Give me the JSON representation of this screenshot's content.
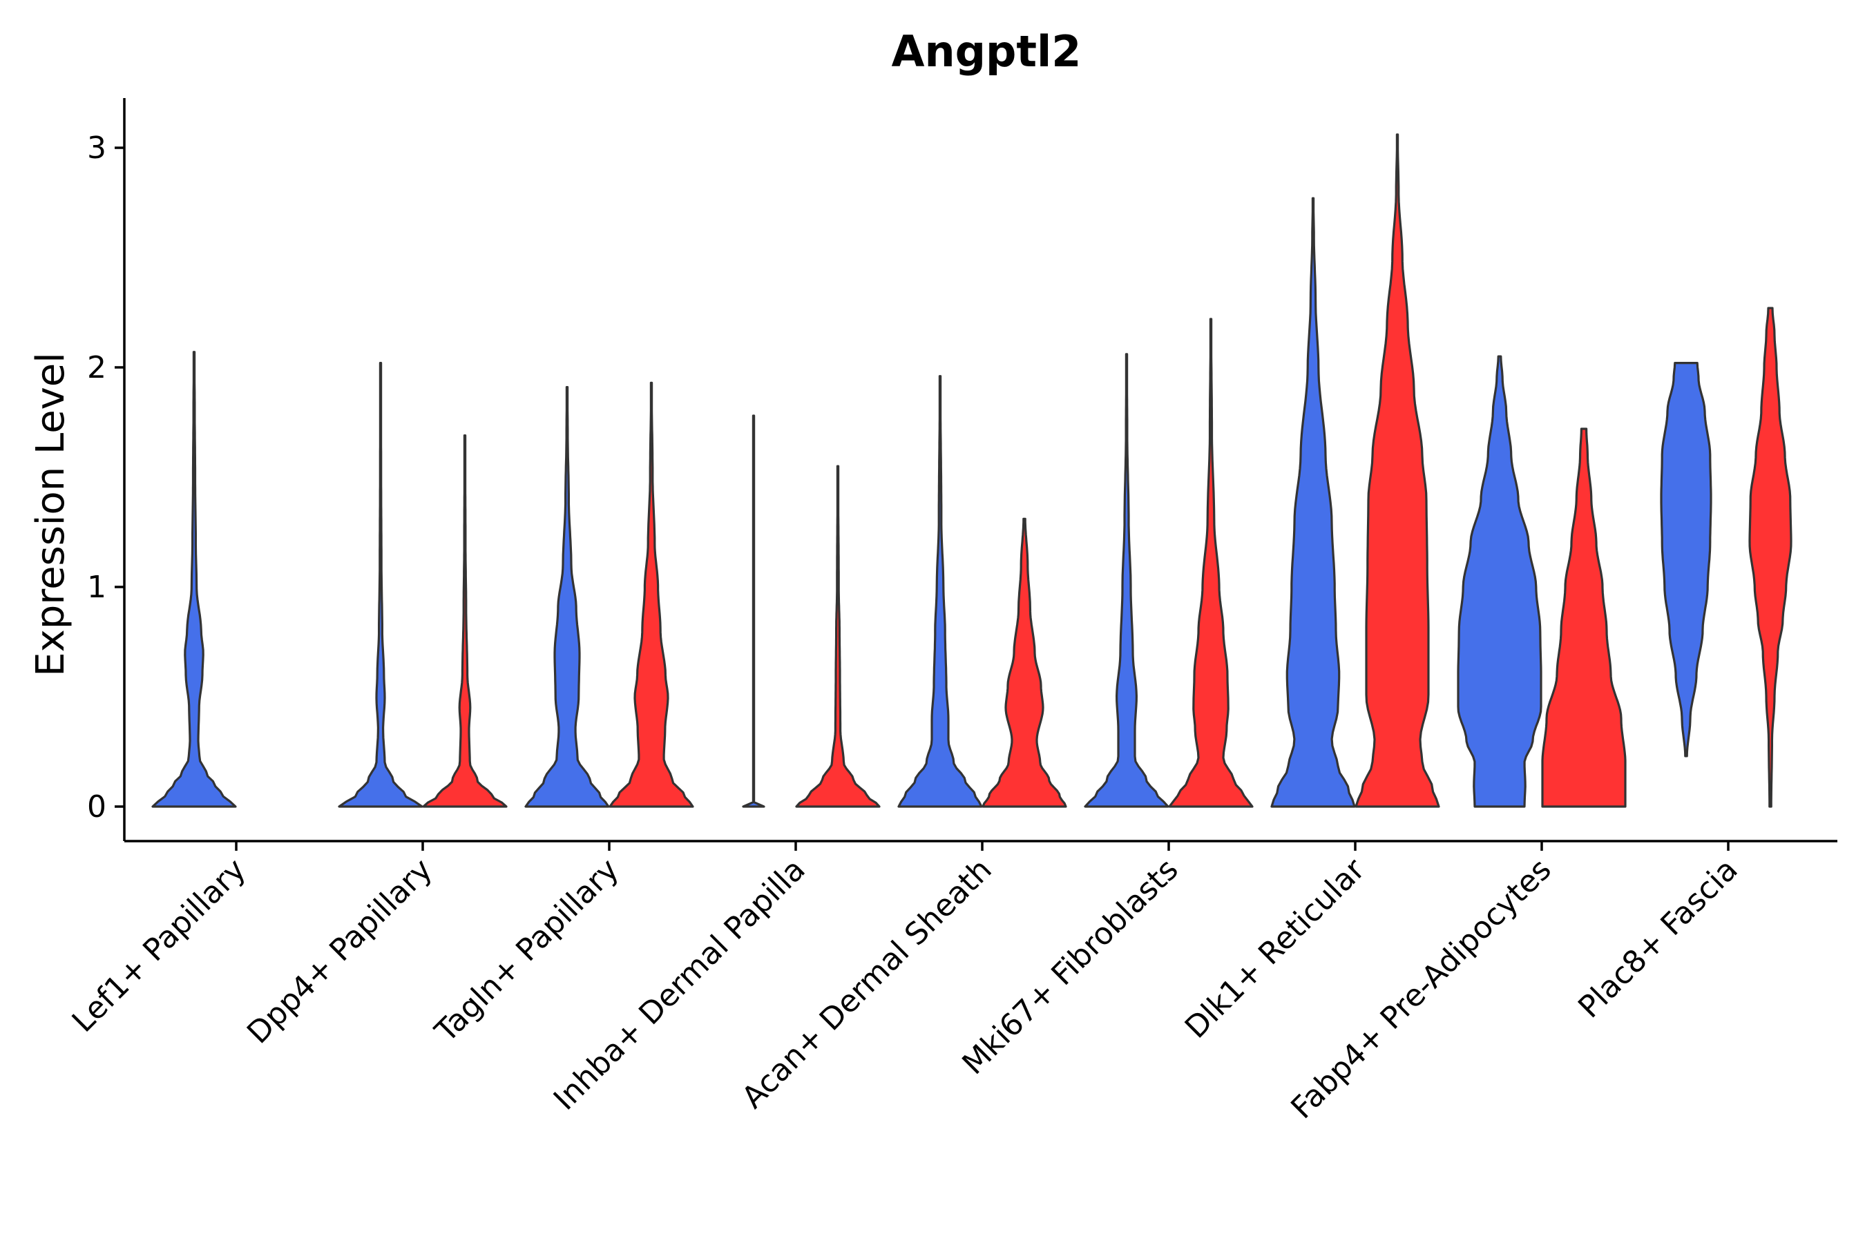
{
  "chart_data": {
    "type": "violin",
    "title": "Angptl2",
    "xlabel": "",
    "ylabel": "Expression Level",
    "ylim": [
      -0.15,
      3.22
    ],
    "yticks": [
      0,
      1,
      2,
      3
    ],
    "grid": false,
    "legend": "none",
    "colors": {
      "group_a": "#4570EA",
      "group_b": "#FF3333"
    },
    "categories": [
      "Lef1+ Papillary",
      "Dpp4+ Papillary",
      "Tagln+ Papillary",
      "Inhba+ Dermal Papilla",
      "Acan+ Dermal Sheath",
      "Mki67+ Fibroblasts",
      "Dlk1+ Reticular",
      "Fabp4+ Pre-Adipocytes",
      "Plac8+ Fascia"
    ],
    "violins": [
      {
        "category": 0,
        "group": "a",
        "min": 0,
        "max": 2.07,
        "density": [
          [
            0,
            1.0
          ],
          [
            0.05,
            0.7
          ],
          [
            0.1,
            0.5
          ],
          [
            0.15,
            0.3
          ],
          [
            0.22,
            0.13
          ],
          [
            0.3,
            0.1
          ],
          [
            0.45,
            0.12
          ],
          [
            0.6,
            0.2
          ],
          [
            0.7,
            0.22
          ],
          [
            0.8,
            0.17
          ],
          [
            1.0,
            0.06
          ],
          [
            1.2,
            0.04
          ],
          [
            1.5,
            0.025
          ],
          [
            1.8,
            0.015
          ],
          [
            2.07,
            0.005
          ]
        ]
      },
      {
        "category": 1,
        "group": "a",
        "min": 0,
        "max": 2.02,
        "density": [
          [
            0,
            1.0
          ],
          [
            0.05,
            0.6
          ],
          [
            0.12,
            0.3
          ],
          [
            0.2,
            0.1
          ],
          [
            0.35,
            0.06
          ],
          [
            0.5,
            0.1
          ],
          [
            0.6,
            0.08
          ],
          [
            0.8,
            0.04
          ],
          [
            1.1,
            0.02
          ],
          [
            1.5,
            0.012
          ],
          [
            2.02,
            0.005
          ]
        ]
      },
      {
        "category": 1,
        "group": "b",
        "min": 0,
        "max": 1.69,
        "density": [
          [
            0,
            1.0
          ],
          [
            0.05,
            0.65
          ],
          [
            0.12,
            0.3
          ],
          [
            0.2,
            0.12
          ],
          [
            0.35,
            0.1
          ],
          [
            0.45,
            0.13
          ],
          [
            0.6,
            0.06
          ],
          [
            0.9,
            0.03
          ],
          [
            1.2,
            0.015
          ],
          [
            1.69,
            0.005
          ]
        ]
      },
      {
        "category": 2,
        "group": "a",
        "min": 0,
        "max": 1.91,
        "density": [
          [
            0,
            1.0
          ],
          [
            0.05,
            0.8
          ],
          [
            0.12,
            0.55
          ],
          [
            0.22,
            0.25
          ],
          [
            0.35,
            0.2
          ],
          [
            0.5,
            0.28
          ],
          [
            0.7,
            0.3
          ],
          [
            0.9,
            0.22
          ],
          [
            1.1,
            0.1
          ],
          [
            1.4,
            0.04
          ],
          [
            1.7,
            0.015
          ],
          [
            1.91,
            0.005
          ]
        ]
      },
      {
        "category": 2,
        "group": "b",
        "min": 0,
        "max": 1.93,
        "density": [
          [
            0,
            1.0
          ],
          [
            0.05,
            0.8
          ],
          [
            0.12,
            0.5
          ],
          [
            0.22,
            0.3
          ],
          [
            0.35,
            0.33
          ],
          [
            0.5,
            0.4
          ],
          [
            0.6,
            0.34
          ],
          [
            0.8,
            0.22
          ],
          [
            1.0,
            0.16
          ],
          [
            1.2,
            0.08
          ],
          [
            1.5,
            0.03
          ],
          [
            1.93,
            0.005
          ]
        ]
      },
      {
        "category": 3,
        "group": "a",
        "min": 0,
        "max": 1.78,
        "density": [
          [
            0,
            0.25
          ],
          [
            0.003,
            0.01
          ],
          [
            0.3,
            0.006
          ],
          [
            1.0,
            0.005
          ],
          [
            1.78,
            0.004
          ]
        ]
      },
      {
        "category": 3,
        "group": "b",
        "min": 0,
        "max": 1.55,
        "density": [
          [
            0,
            1.0
          ],
          [
            0.05,
            0.7
          ],
          [
            0.12,
            0.38
          ],
          [
            0.2,
            0.14
          ],
          [
            0.35,
            0.06
          ],
          [
            0.6,
            0.05
          ],
          [
            0.8,
            0.04
          ],
          [
            1.0,
            0.02
          ],
          [
            1.55,
            0.005
          ]
        ]
      },
      {
        "category": 4,
        "group": "a",
        "min": 0,
        "max": 1.96,
        "density": [
          [
            0,
            1.0
          ],
          [
            0.05,
            0.85
          ],
          [
            0.12,
            0.6
          ],
          [
            0.2,
            0.33
          ],
          [
            0.3,
            0.2
          ],
          [
            0.4,
            0.2
          ],
          [
            0.55,
            0.15
          ],
          [
            0.8,
            0.12
          ],
          [
            1.0,
            0.08
          ],
          [
            1.3,
            0.03
          ],
          [
            1.96,
            0.005
          ]
        ]
      },
      {
        "category": 4,
        "group": "b",
        "min": 0,
        "max": 1.31,
        "density": [
          [
            0,
            1.0
          ],
          [
            0.05,
            0.85
          ],
          [
            0.12,
            0.6
          ],
          [
            0.2,
            0.38
          ],
          [
            0.3,
            0.3
          ],
          [
            0.45,
            0.45
          ],
          [
            0.55,
            0.4
          ],
          [
            0.7,
            0.25
          ],
          [
            0.9,
            0.14
          ],
          [
            1.1,
            0.08
          ],
          [
            1.31,
            0.02
          ]
        ]
      },
      {
        "category": 5,
        "group": "a",
        "min": 0,
        "max": 2.06,
        "density": [
          [
            0,
            1.0
          ],
          [
            0.05,
            0.75
          ],
          [
            0.12,
            0.48
          ],
          [
            0.22,
            0.2
          ],
          [
            0.35,
            0.2
          ],
          [
            0.5,
            0.24
          ],
          [
            0.7,
            0.15
          ],
          [
            1.0,
            0.1
          ],
          [
            1.3,
            0.05
          ],
          [
            1.7,
            0.015
          ],
          [
            2.06,
            0.005
          ]
        ]
      },
      {
        "category": 5,
        "group": "b",
        "min": 0,
        "max": 2.22,
        "density": [
          [
            0,
            1.0
          ],
          [
            0.05,
            0.8
          ],
          [
            0.12,
            0.55
          ],
          [
            0.22,
            0.3
          ],
          [
            0.35,
            0.38
          ],
          [
            0.45,
            0.42
          ],
          [
            0.6,
            0.4
          ],
          [
            0.8,
            0.3
          ],
          [
            1.0,
            0.2
          ],
          [
            1.3,
            0.08
          ],
          [
            1.7,
            0.025
          ],
          [
            2.22,
            0.005
          ]
        ]
      },
      {
        "category": 6,
        "group": "a",
        "min": 0,
        "max": 2.77,
        "density": [
          [
            0,
            1.0
          ],
          [
            0.08,
            0.85
          ],
          [
            0.18,
            0.6
          ],
          [
            0.3,
            0.45
          ],
          [
            0.45,
            0.6
          ],
          [
            0.6,
            0.63
          ],
          [
            0.8,
            0.55
          ],
          [
            1.0,
            0.52
          ],
          [
            1.3,
            0.45
          ],
          [
            1.6,
            0.3
          ],
          [
            2.0,
            0.13
          ],
          [
            2.3,
            0.06
          ],
          [
            2.6,
            0.02
          ],
          [
            2.77,
            0.005
          ]
        ]
      },
      {
        "category": 6,
        "group": "b",
        "min": 0,
        "max": 3.06,
        "density": [
          [
            0,
            1.0
          ],
          [
            0.08,
            0.85
          ],
          [
            0.2,
            0.6
          ],
          [
            0.3,
            0.55
          ],
          [
            0.5,
            0.75
          ],
          [
            0.8,
            0.75
          ],
          [
            1.1,
            0.72
          ],
          [
            1.4,
            0.7
          ],
          [
            1.6,
            0.6
          ],
          [
            1.9,
            0.4
          ],
          [
            2.2,
            0.25
          ],
          [
            2.5,
            0.12
          ],
          [
            2.8,
            0.03
          ],
          [
            3.06,
            0.005
          ]
        ]
      },
      {
        "category": 7,
        "group": "a",
        "min": 0,
        "max": 2.05,
        "density": [
          [
            0,
            0.6
          ],
          [
            0.1,
            0.62
          ],
          [
            0.2,
            0.6
          ],
          [
            0.3,
            0.8
          ],
          [
            0.45,
            1.0
          ],
          [
            0.6,
            1.0
          ],
          [
            0.8,
            0.98
          ],
          [
            1.0,
            0.88
          ],
          [
            1.2,
            0.7
          ],
          [
            1.4,
            0.45
          ],
          [
            1.6,
            0.28
          ],
          [
            1.8,
            0.16
          ],
          [
            1.95,
            0.07
          ],
          [
            2.05,
            0.03
          ]
        ]
      },
      {
        "category": 7,
        "group": "b",
        "min": 0,
        "max": 1.72,
        "density": [
          [
            0,
            1.0
          ],
          [
            0.2,
            1.0
          ],
          [
            0.4,
            0.9
          ],
          [
            0.6,
            0.65
          ],
          [
            0.8,
            0.55
          ],
          [
            1.0,
            0.45
          ],
          [
            1.2,
            0.3
          ],
          [
            1.4,
            0.18
          ],
          [
            1.6,
            0.09
          ],
          [
            1.72,
            0.06
          ]
        ]
      },
      {
        "category": 8,
        "group": "a",
        "min": 0.23,
        "max": 2.02,
        "density": [
          [
            0.23,
            0.02
          ],
          [
            0.4,
            0.1
          ],
          [
            0.6,
            0.25
          ],
          [
            0.8,
            0.4
          ],
          [
            1.0,
            0.52
          ],
          [
            1.2,
            0.58
          ],
          [
            1.4,
            0.6
          ],
          [
            1.6,
            0.58
          ],
          [
            1.8,
            0.45
          ],
          [
            1.95,
            0.3
          ],
          [
            2.02,
            0.27
          ]
        ]
      },
      {
        "category": 8,
        "group": "b",
        "min": 0,
        "max": 2.27,
        "density": [
          [
            0,
            0.02
          ],
          [
            0.3,
            0.04
          ],
          [
            0.5,
            0.1
          ],
          [
            0.7,
            0.18
          ],
          [
            0.85,
            0.3
          ],
          [
            1.0,
            0.38
          ],
          [
            1.2,
            0.5
          ],
          [
            1.4,
            0.48
          ],
          [
            1.6,
            0.35
          ],
          [
            1.8,
            0.22
          ],
          [
            2.0,
            0.15
          ],
          [
            2.15,
            0.1
          ],
          [
            2.27,
            0.05
          ]
        ]
      }
    ]
  }
}
